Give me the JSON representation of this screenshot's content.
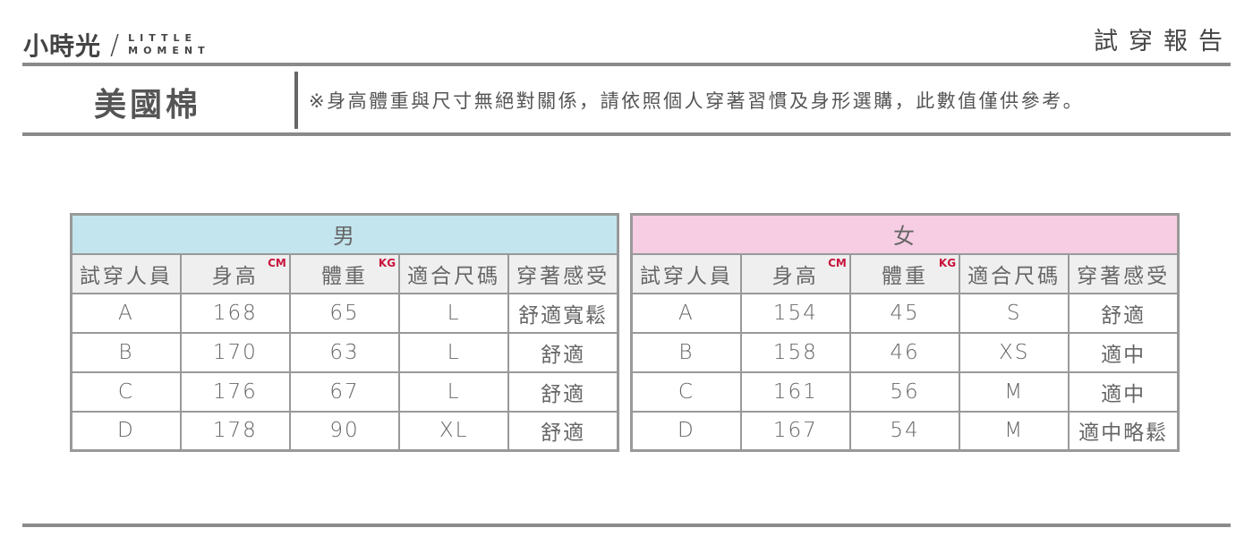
{
  "brand": {
    "cn": "小時光",
    "en_line1": "LITTLE",
    "en_line2": "MOMENT"
  },
  "report_title": "試穿報告",
  "product": "美國棉",
  "note": "※身高體重與尺寸無絕對關係，請依照個人穿著習慣及身形選購，此數值僅供參考。",
  "columns": [
    "試穿人員",
    "身高",
    "體重",
    "適合尺碼",
    "穿著感受"
  ],
  "units": {
    "height": "CM",
    "weight": "KG"
  },
  "colors": {
    "men_header": "#c3e5ee",
    "women_header": "#f6cde2",
    "unit": "#c8143c"
  },
  "men": {
    "title": "男",
    "rows": [
      [
        "A",
        "168",
        "65",
        "L",
        "舒適寬鬆"
      ],
      [
        "B",
        "170",
        "63",
        "L",
        "舒適"
      ],
      [
        "C",
        "176",
        "67",
        "L",
        "舒適"
      ],
      [
        "D",
        "178",
        "90",
        "XL",
        "舒適"
      ]
    ]
  },
  "women": {
    "title": "女",
    "rows": [
      [
        "A",
        "154",
        "45",
        "S",
        "舒適"
      ],
      [
        "B",
        "158",
        "46",
        "XS",
        "適中"
      ],
      [
        "C",
        "161",
        "56",
        "M",
        "適中"
      ],
      [
        "D",
        "167",
        "54",
        "M",
        "適中略鬆"
      ]
    ]
  }
}
